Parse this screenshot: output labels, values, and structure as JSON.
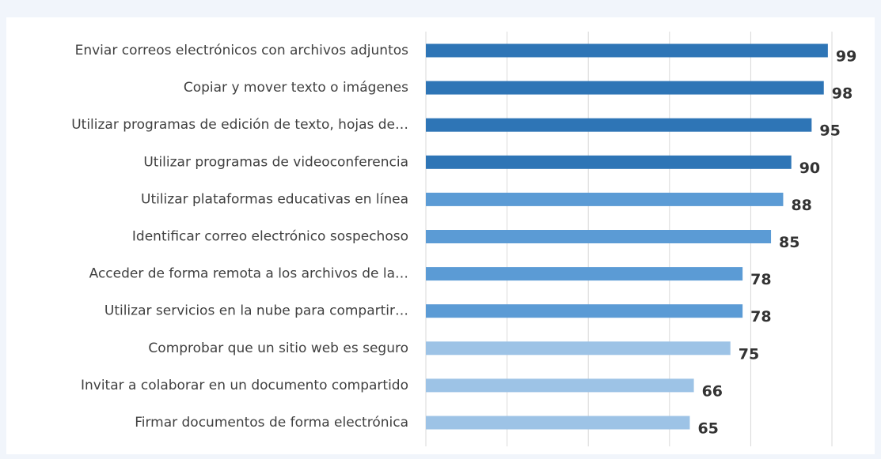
{
  "chart_data": {
    "type": "bar",
    "orientation": "horizontal",
    "categories": [
      "Enviar correos electrónicos con archivos adjuntos",
      "Copiar y mover texto o imágenes",
      "Utilizar programas de edición de texto, hojas de…",
      "Utilizar programas de videoconferencia",
      "Utilizar plataformas educativas en línea",
      "Identificar correo electrónico sospechoso",
      "Acceder de forma remota a los archivos de la…",
      "Utilizar servicios en la nube para compartir…",
      "Comprobar que un sitio web es seguro",
      "Invitar a colaborar en un documento compartido",
      "Firmar documentos de forma electrónica"
    ],
    "values": [
      99,
      98,
      95,
      90,
      88,
      85,
      78,
      78,
      75,
      66,
      65
    ],
    "colors": [
      "#2e75b6",
      "#2e75b6",
      "#2e75b6",
      "#2e75b6",
      "#5b9bd5",
      "#5b9bd5",
      "#5b9bd5",
      "#5b9bd5",
      "#9dc3e6",
      "#9dc3e6",
      "#9dc3e6"
    ],
    "xlim": [
      0,
      100
    ],
    "xticks": [
      0,
      20,
      40,
      60,
      80,
      100
    ],
    "grid": true
  }
}
